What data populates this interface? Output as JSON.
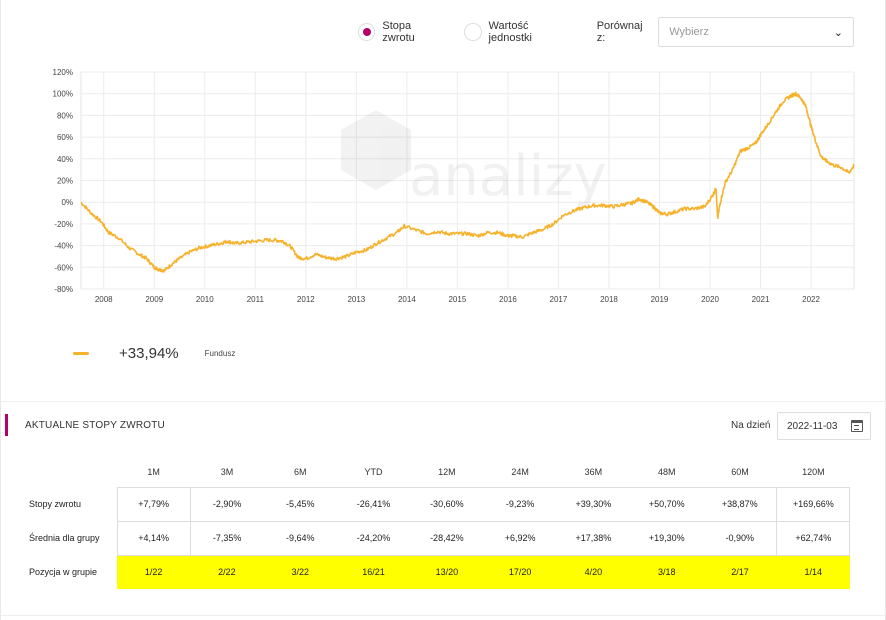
{
  "controls": {
    "radio_return": "Stopa zwrotu",
    "radio_unit": "Wartość jednostki",
    "compare_label": "Porównaj z:",
    "compare_placeholder": "Wybierz"
  },
  "legend": {
    "value": "+33,94%",
    "name": "Fundusz",
    "color": "#f7b22c"
  },
  "chart_data": {
    "type": "line",
    "watermark": "analizy",
    "y_ticks": [
      "120%",
      "100%",
      "80%",
      "60%",
      "40%",
      "20%",
      "0%",
      "-20%",
      "-40%",
      "-60%",
      "-80%"
    ],
    "ylim": [
      -80,
      120
    ],
    "x_ticks": [
      "2008",
      "2009",
      "2010",
      "2011",
      "2012",
      "2013",
      "2014",
      "2015",
      "2016",
      "2017",
      "2018",
      "2019",
      "2020",
      "2021",
      "2022"
    ],
    "xlim": [
      2007.55,
      2022.85
    ],
    "grid": true,
    "series": [
      {
        "color": "#f7b22c",
        "x": [
          2007.55,
          2007.75,
          2007.95,
          2008.1,
          2008.3,
          2008.5,
          2008.7,
          2008.85,
          2009.0,
          2009.1,
          2009.2,
          2009.35,
          2009.5,
          2009.7,
          2009.9,
          2010.1,
          2010.3,
          2010.45,
          2010.6,
          2010.8,
          2011.0,
          2011.2,
          2011.4,
          2011.55,
          2011.7,
          2011.85,
          2012.0,
          2012.2,
          2012.4,
          2012.6,
          2012.8,
          2013.0,
          2013.2,
          2013.4,
          2013.6,
          2013.8,
          2013.95,
          2014.2,
          2014.4,
          2014.6,
          2014.8,
          2015.0,
          2015.2,
          2015.4,
          2015.6,
          2015.8,
          2016.0,
          2016.1,
          2016.3,
          2016.5,
          2016.7,
          2016.9,
          2017.1,
          2017.3,
          2017.5,
          2017.7,
          2017.9,
          2018.1,
          2018.3,
          2018.45,
          2018.6,
          2018.75,
          2018.9,
          2019.0,
          2019.15,
          2019.3,
          2019.5,
          2019.7,
          2019.9,
          2020.05,
          2020.12,
          2020.15,
          2020.2,
          2020.3,
          2020.45,
          2020.6,
          2020.75,
          2020.9,
          2021.0,
          2021.15,
          2021.3,
          2021.45,
          2021.6,
          2021.7,
          2021.8,
          2021.9,
          2022.0,
          2022.1,
          2022.2,
          2022.3,
          2022.45,
          2022.6,
          2022.75,
          2022.85
        ],
        "y": [
          0,
          -10,
          -18,
          -28,
          -33,
          -42,
          -48,
          -52,
          -60,
          -62,
          -63,
          -57,
          -52,
          -46,
          -42,
          -40,
          -38,
          -36,
          -38,
          -37,
          -36,
          -35,
          -35,
          -36,
          -41,
          -51,
          -52,
          -48,
          -51,
          -52,
          -50,
          -46,
          -44,
          -38,
          -33,
          -28,
          -22,
          -26,
          -29,
          -27,
          -29,
          -29,
          -29,
          -31,
          -28,
          -28,
          -31,
          -31,
          -32,
          -28,
          -25,
          -20,
          -12,
          -8,
          -5,
          -3,
          -3,
          -4,
          -2,
          -1,
          3,
          0,
          -5,
          -10,
          -11,
          -9,
          -6,
          -6,
          -4,
          6,
          13,
          -15,
          -1,
          18,
          30,
          47,
          50,
          54,
          62,
          72,
          83,
          93,
          98,
          100,
          96,
          88,
          70,
          55,
          42,
          38,
          34,
          32,
          27,
          34
        ]
      }
    ]
  },
  "returns": {
    "title": "AKTUALNE STOPY ZWROTU",
    "date_label": "Na dzień",
    "date_value": "2022-11-03",
    "columns": [
      "1M",
      "3M",
      "6M",
      "YTD",
      "12M",
      "24M",
      "36M",
      "48M",
      "60M",
      "120M"
    ],
    "rows": [
      {
        "label": "Stopy zwrotu",
        "values": [
          "+7,79%",
          "-2,90%",
          "-5,45%",
          "-26,41%",
          "-30,60%",
          "-9,23%",
          "+39,30%",
          "+50,70%",
          "+38,87%",
          "+169,66%"
        ]
      },
      {
        "label": "Średnia dla grupy",
        "values": [
          "+4,14%",
          "-7,35%",
          "-9,64%",
          "-24,20%",
          "-28,42%",
          "+6,92%",
          "+17,38%",
          "+19,30%",
          "-0,90%",
          "+62,74%"
        ]
      },
      {
        "label": "Pozycja w grupie",
        "values": [
          "1/22",
          "2/22",
          "3/22",
          "16/21",
          "13/20",
          "17/20",
          "4/20",
          "3/18",
          "2/17",
          "1/14"
        ]
      }
    ],
    "highlight_color": "#ffff00"
  }
}
